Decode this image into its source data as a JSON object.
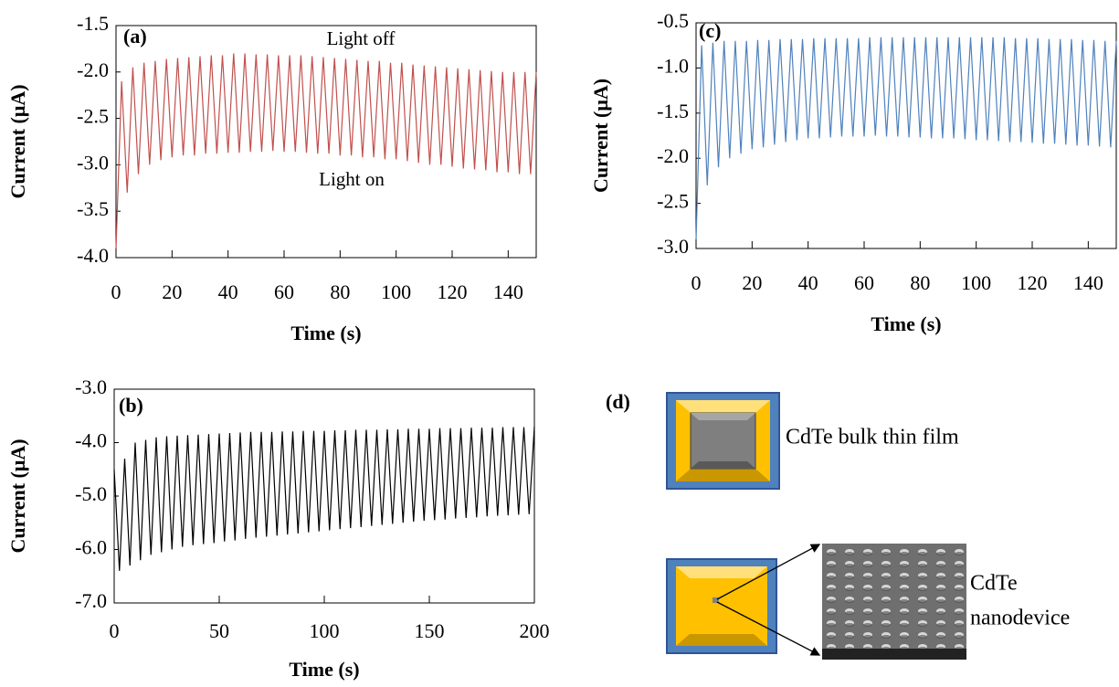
{
  "chart_data": [
    {
      "type": "line",
      "panel_label": "(a)",
      "x_label": "Time (s)",
      "y_label": "Current (μA)",
      "color": "#c0504d",
      "annotations": [
        "Light off",
        "Light on"
      ],
      "xlim": [
        0,
        150
      ],
      "ylim": [
        -4,
        -1.5
      ],
      "xticks": [
        0,
        20,
        40,
        60,
        80,
        100,
        120,
        140
      ],
      "yticks": [
        -1.5,
        {
          "value": -2,
          "label": "-2.0"
        },
        -2.5,
        {
          "value": -3,
          "label": "-3.0"
        },
        -3.5,
        {
          "value": -4,
          "label": "-4.0"
        }
      ],
      "x": [
        0,
        2,
        4,
        6,
        8,
        10,
        12,
        14,
        16,
        18,
        20,
        22,
        24,
        26,
        28,
        30,
        32,
        34,
        36,
        38,
        40,
        42,
        44,
        46,
        48,
        50,
        52,
        54,
        56,
        58,
        60,
        62,
        64,
        66,
        68,
        70,
        72,
        74,
        76,
        78,
        80,
        82,
        84,
        86,
        88,
        90,
        92,
        94,
        96,
        98,
        100,
        102,
        104,
        106,
        108,
        110,
        112,
        114,
        116,
        118,
        120,
        122,
        124,
        126,
        128,
        130,
        132,
        134,
        136,
        138,
        140,
        142,
        144,
        146,
        148,
        150
      ],
      "values": [
        -3.9,
        -2.1,
        -3.3,
        -1.95,
        -3.1,
        -1.9,
        -3.0,
        -1.88,
        -2.95,
        -1.86,
        -2.92,
        -1.85,
        -2.9,
        -1.84,
        -2.9,
        -1.83,
        -2.88,
        -1.82,
        -2.88,
        -1.82,
        -2.87,
        -1.8,
        -2.87,
        -1.8,
        -2.86,
        -1.81,
        -2.86,
        -1.81,
        -2.85,
        -1.82,
        -2.86,
        -1.82,
        -2.86,
        -1.82,
        -2.87,
        -1.83,
        -2.88,
        -1.84,
        -2.88,
        -1.85,
        -2.9,
        -1.86,
        -2.9,
        -1.87,
        -2.92,
        -1.88,
        -2.92,
        -1.88,
        -2.94,
        -1.9,
        -2.94,
        -1.9,
        -2.96,
        -1.92,
        -2.98,
        -1.93,
        -3.0,
        -1.94,
        -3.0,
        -1.95,
        -3.02,
        -1.96,
        -3.04,
        -1.97,
        -3.05,
        -1.98,
        -3.06,
        -1.99,
        -3.08,
        -2.0,
        -3.08,
        -2.0,
        -3.1,
        -2.0,
        -3.1,
        -2.0
      ]
    },
    {
      "type": "line",
      "panel_label": "(c)",
      "x_label": "Time (s)",
      "y_label": "Current (μA)",
      "color": "#4f81bd",
      "xlim": [
        0,
        150
      ],
      "ylim": [
        -3,
        -0.5
      ],
      "xticks": [
        0,
        20,
        40,
        60,
        80,
        100,
        120,
        140
      ],
      "yticks": [
        -0.5,
        {
          "value": -1,
          "label": "-1.0"
        },
        -1.5,
        {
          "value": -2,
          "label": "-2.0"
        },
        -2.5,
        {
          "value": -3,
          "label": "-3.0"
        }
      ],
      "x": [
        0,
        2,
        4,
        6,
        8,
        10,
        12,
        14,
        16,
        18,
        20,
        22,
        24,
        26,
        28,
        30,
        32,
        34,
        36,
        38,
        40,
        42,
        44,
        46,
        48,
        50,
        52,
        54,
        56,
        58,
        60,
        62,
        64,
        66,
        68,
        70,
        72,
        74,
        76,
        78,
        80,
        82,
        84,
        86,
        88,
        90,
        92,
        94,
        96,
        98,
        100,
        102,
        104,
        106,
        108,
        110,
        112,
        114,
        116,
        118,
        120,
        122,
        124,
        126,
        128,
        130,
        132,
        134,
        136,
        138,
        140,
        142,
        144,
        146,
        148,
        150
      ],
      "values": [
        -2.9,
        -0.75,
        -2.3,
        -0.72,
        -2.1,
        -0.7,
        -2.0,
        -0.7,
        -1.95,
        -0.7,
        -1.9,
        -0.69,
        -1.88,
        -0.69,
        -1.85,
        -0.68,
        -1.82,
        -0.68,
        -1.8,
        -0.68,
        -1.78,
        -0.67,
        -1.78,
        -0.67,
        -1.77,
        -0.67,
        -1.76,
        -0.67,
        -1.76,
        -0.67,
        -1.76,
        -0.66,
        -1.75,
        -0.66,
        -1.76,
        -0.66,
        -1.76,
        -0.66,
        -1.77,
        -0.66,
        -1.77,
        -0.66,
        -1.78,
        -0.66,
        -1.78,
        -0.66,
        -1.78,
        -0.66,
        -1.79,
        -0.66,
        -1.8,
        -0.66,
        -1.8,
        -0.66,
        -1.81,
        -0.66,
        -1.82,
        -0.67,
        -1.82,
        -0.67,
        -1.83,
        -0.67,
        -1.84,
        -0.68,
        -1.84,
        -0.68,
        -1.85,
        -0.68,
        -1.86,
        -0.69,
        -1.86,
        -0.69,
        -1.87,
        -0.7,
        -1.88,
        -0.7
      ]
    },
    {
      "type": "line",
      "panel_label": "(b)",
      "x_label": "Time (s)",
      "y_label": "Current (μA)",
      "color": "#000000",
      "xlim": [
        0,
        200
      ],
      "ylim": [
        -7,
        -3
      ],
      "xticks": [
        0,
        50,
        100,
        150,
        200
      ],
      "yticks": [
        {
          "value": -3,
          "label": "-3.0"
        },
        {
          "value": -4,
          "label": "-4.0"
        },
        {
          "value": -5,
          "label": "-5.0"
        },
        {
          "value": -6,
          "label": "-6.0"
        },
        {
          "value": -7,
          "label": "-7.0"
        }
      ],
      "x": [
        0,
        2.5,
        5,
        7.5,
        10,
        12.5,
        15,
        17.5,
        20,
        22.5,
        25,
        27.5,
        30,
        32.5,
        35,
        37.5,
        40,
        42.5,
        45,
        47.5,
        50,
        52.5,
        55,
        57.5,
        60,
        62.5,
        65,
        67.5,
        70,
        72.5,
        75,
        77.5,
        80,
        82.5,
        85,
        87.5,
        90,
        92.5,
        95,
        97.5,
        100,
        102.5,
        105,
        107.5,
        110,
        112.5,
        115,
        117.5,
        120,
        122.5,
        125,
        127.5,
        130,
        132.5,
        135,
        137.5,
        140,
        142.5,
        145,
        147.5,
        150,
        152.5,
        155,
        157.5,
        160,
        162.5,
        165,
        167.5,
        170,
        172.5,
        175,
        177.5,
        180,
        182.5,
        185,
        187.5,
        190,
        192.5,
        195,
        197.5,
        200
      ],
      "values": [
        -4.5,
        -6.4,
        -4.3,
        -6.3,
        -4.0,
        -6.2,
        -3.95,
        -6.1,
        -3.9,
        -6.05,
        -3.88,
        -6.0,
        -3.87,
        -5.95,
        -3.86,
        -5.92,
        -3.85,
        -5.9,
        -3.84,
        -5.88,
        -3.83,
        -5.85,
        -3.82,
        -5.83,
        -3.81,
        -5.8,
        -3.8,
        -5.78,
        -3.8,
        -5.76,
        -3.8,
        -5.74,
        -3.79,
        -5.72,
        -3.79,
        -5.7,
        -3.78,
        -5.68,
        -3.78,
        -5.66,
        -3.78,
        -5.64,
        -3.77,
        -5.62,
        -3.77,
        -5.6,
        -3.76,
        -5.58,
        -3.76,
        -5.56,
        -3.76,
        -5.54,
        -3.75,
        -5.52,
        -3.75,
        -5.5,
        -3.74,
        -5.48,
        -3.74,
        -5.46,
        -3.74,
        -5.45,
        -3.73,
        -5.44,
        -3.73,
        -5.42,
        -3.73,
        -5.41,
        -3.72,
        -5.4,
        -3.72,
        -5.38,
        -3.72,
        -5.37,
        -3.71,
        -5.36,
        -3.71,
        -5.35,
        -3.71,
        -5.34,
        -3.7
      ]
    }
  ],
  "diagram": {
    "panel_label": "(d)",
    "bulk_label": "CdTe bulk thin film",
    "nano_label": [
      "CdTe",
      "nanodevice"
    ]
  }
}
